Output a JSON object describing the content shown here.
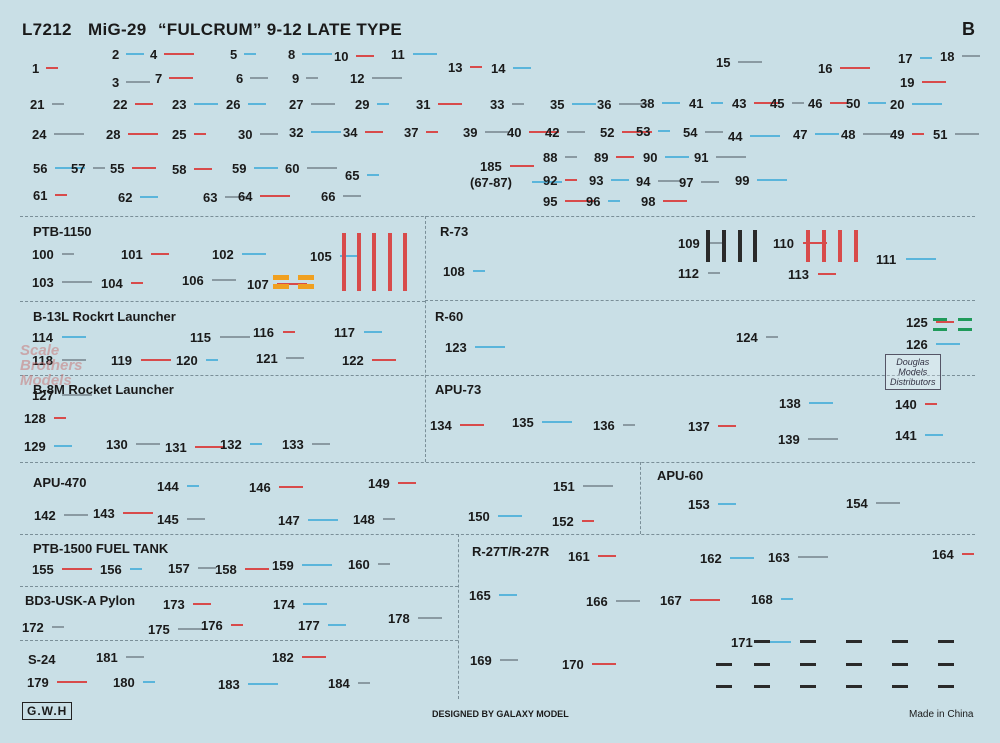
{
  "header": {
    "code": "L7212",
    "title": "MiG-29",
    "subtitle": "“FULCRUM” 9-12 LATE TYPE",
    "sheet": "B"
  },
  "sections": {
    "ptb1150": "PTB-1150",
    "r73": "R-73",
    "b13l": "B-13L Rockrt Launcher",
    "r60": "R-60",
    "b8m": "B-8M Rocket Launcher",
    "apu73": "APU-73",
    "apu470": "APU-470",
    "apu60": "APU-60",
    "ptb1500": "PTB-1500 FUEL TANK",
    "r27": "R-27T/R-27R",
    "bd3": "BD3-USK-A Pylon",
    "s24": "S-24"
  },
  "numbers": [
    "1",
    "2",
    "3",
    "4",
    "5",
    "6",
    "7",
    "8",
    "9",
    "10",
    "11",
    "12",
    "13",
    "14",
    "15",
    "16",
    "17",
    "18",
    "19",
    "20",
    "21",
    "22",
    "23",
    "24",
    "25",
    "26",
    "27",
    "28",
    "29",
    "30",
    "31",
    "32",
    "33",
    "34",
    "35",
    "36",
    "37",
    "38",
    "39",
    "40",
    "41",
    "42",
    "43",
    "44",
    "45",
    "46",
    "47",
    "48",
    "49",
    "50",
    "51",
    "52",
    "53",
    "54",
    "55",
    "56",
    "57",
    "58",
    "59",
    "60",
    "61",
    "62",
    "63",
    "64",
    "65",
    "66",
    "185",
    "(67-87)",
    "88",
    "89",
    "90",
    "91",
    "92",
    "93",
    "94",
    "95",
    "96",
    "97",
    "98",
    "99",
    "100",
    "101",
    "102",
    "103",
    "104",
    "105",
    "106",
    "107",
    "108",
    "109",
    "110",
    "111",
    "112",
    "113",
    "114",
    "115",
    "116",
    "117",
    "118",
    "119",
    "120",
    "121",
    "122",
    "123",
    "124",
    "125",
    "126",
    "127",
    "128",
    "129",
    "130",
    "131",
    "132",
    "133",
    "134",
    "135",
    "136",
    "137",
    "138",
    "139",
    "140",
    "141",
    "142",
    "143",
    "144",
    "145",
    "146",
    "147",
    "148",
    "149",
    "150",
    "151",
    "152",
    "153",
    "154",
    "155",
    "156",
    "157",
    "158",
    "159",
    "160",
    "161",
    "162",
    "163",
    "164",
    "165",
    "166",
    "167",
    "168",
    "169",
    "170",
    "171",
    "172",
    "173",
    "174",
    "175",
    "176",
    "177",
    "178",
    "179",
    "180",
    "181",
    "182",
    "183",
    "184"
  ],
  "footer": {
    "designer": "DESIGNED BY GALAXY MODEL",
    "origin": "Made in China",
    "brand": "G.W.H"
  },
  "watermark": {
    "line1": "Scale",
    "line2": "Brothers",
    "line3": "Models"
  },
  "distributor": {
    "line1": "Douglas",
    "line2": "Models",
    "line3": "Distributors"
  }
}
